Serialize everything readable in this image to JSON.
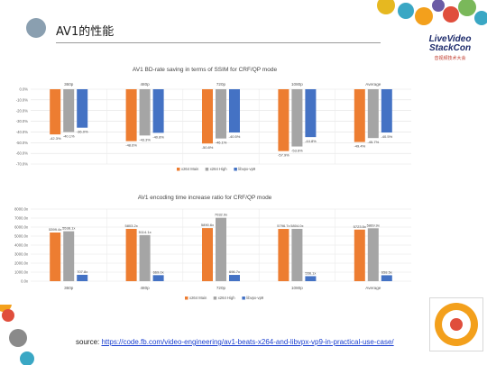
{
  "slide": {
    "title": "AV1的性能",
    "source_prefix": "source: ",
    "source_link": "https://code.fb.com/video-engineering/av1-beats-x264-and-libvpx-vp9-in-practical-use-case/"
  },
  "logo": {
    "line1": "LiveVideo",
    "line2": "StackCon",
    "line3": "音视频技术大会"
  },
  "colors": {
    "x264_main": "#ED7D31",
    "x264_high": "#A5A5A5",
    "libvpx_vp9": "#4472C4",
    "accent_teal": "#3aa7c4",
    "accent_orange": "#f3a01c"
  },
  "chart_data": [
    {
      "type": "bar",
      "title": "AV1 BD-rate saving in terms of SSIM for CRF/QP mode",
      "categories": [
        "360p",
        "480p",
        "720p",
        "1080p",
        "Average"
      ],
      "series": [
        {
          "name": "x264 Main",
          "values": [
            -42.3,
            -48.6,
            -50.8,
            -57.9,
            -49.4
          ]
        },
        {
          "name": "x264 High",
          "values": [
            -40.1,
            -43.3,
            -46.1,
            -53.6,
            -45.7
          ]
        },
        {
          "name": "libvpx-vp9",
          "values": [
            -36.0,
            -40.8,
            -40.5,
            -44.8,
            -40.5
          ]
        }
      ],
      "data_labels": [
        [
          "-42.3%",
          "-40.1%",
          "-36.0%"
        ],
        [
          "-48.6%",
          "-43.3%",
          "-40.8%"
        ],
        [
          "-50.8%",
          "-46.1%",
          "-40.5%"
        ],
        [
          "-57.9%",
          "-53.6%",
          "-44.8%"
        ],
        [
          "-49.4%",
          "-45.7%",
          "-40.5%"
        ]
      ],
      "y_ticks": [
        "0.0%",
        "-10.0%",
        "-20.0%",
        "-30.0%",
        "-40.0%",
        "-50.0%",
        "-60.0%",
        "-70.0%"
      ],
      "ylim": [
        -70,
        0
      ],
      "category_labels_position": "top",
      "legend": "bottom",
      "grid": true
    },
    {
      "type": "bar",
      "title": "AV1 encoding time increase ratio for CRF/QP mode",
      "categories": [
        "360p",
        "480p",
        "720p",
        "1080p",
        "Average"
      ],
      "series": [
        {
          "name": "x264 Main",
          "values": [
            5399.4,
            5803.2,
            5890.6,
            5796.7,
            5723.5
          ]
        },
        {
          "name": "x264 High",
          "values": [
            5538.1,
            5114.1,
            7032.9,
            5804.0,
            5869.9
          ]
        },
        {
          "name": "libvpx-vp9",
          "values": [
            707.8,
            669.0,
            696.7,
            556.1,
            658.5
          ]
        }
      ],
      "data_labels": [
        [
          "5399.4x",
          "5538.1x",
          "707.8x"
        ],
        [
          "5803.2x",
          "5114.1x",
          "669.0x"
        ],
        [
          "5890.6x",
          "7032.9x",
          "696.7x"
        ],
        [
          "5796.7x",
          "5804.0x",
          "556.1x"
        ],
        [
          "5723.5x",
          "5869.9x",
          "658.5x"
        ]
      ],
      "y_ticks": [
        "8000.0x",
        "7000.0x",
        "6000.0x",
        "5000.0x",
        "4000.0x",
        "3000.0x",
        "2000.0x",
        "1000.0x",
        "0.0x"
      ],
      "ylim": [
        0,
        8000
      ],
      "category_labels_position": "bottom",
      "legend": "bottom",
      "grid": true
    }
  ]
}
